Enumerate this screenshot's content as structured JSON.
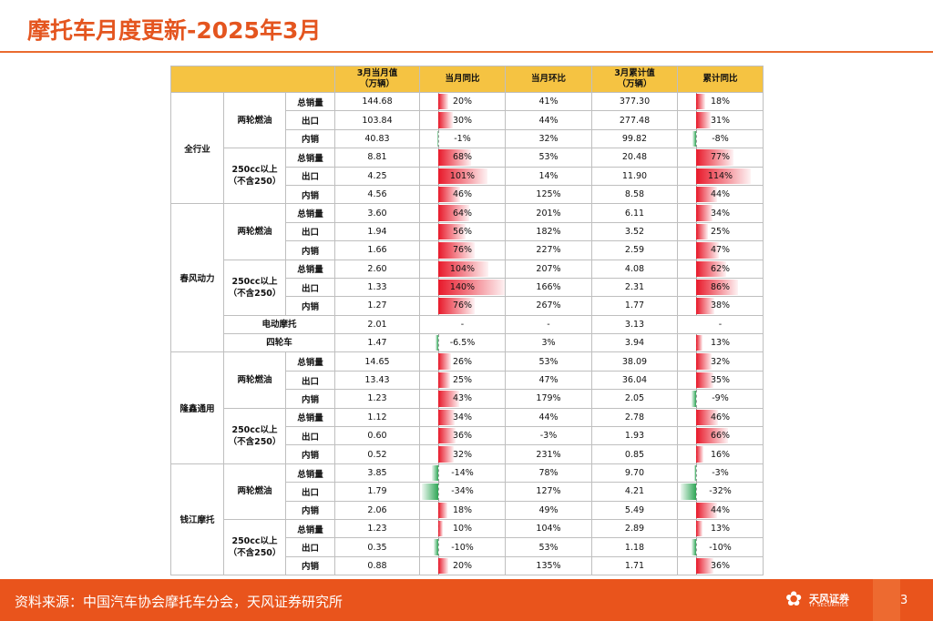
{
  "title": "摩托车月度更新-2025年3月",
  "headers": {
    "month_value": "3月当月值",
    "month_value_unit": "（万辆）",
    "yoy": "当月同比",
    "mom": "当月环比",
    "cum_value": "3月累计值",
    "cum_value_unit": "（万辆）",
    "cum_yoy": "累计同比"
  },
  "rows": [
    {
      "group": "全行业",
      "sub": "两轮燃油",
      "metric": "总销量",
      "value": "144.68",
      "yoy": "20%",
      "mom": "41%",
      "cum": "377.30",
      "cum_yoy": "18%"
    },
    {
      "group": "全行业",
      "sub": "两轮燃油",
      "metric": "出口",
      "value": "103.84",
      "yoy": "30%",
      "mom": "44%",
      "cum": "277.48",
      "cum_yoy": "31%"
    },
    {
      "group": "全行业",
      "sub": "两轮燃油",
      "metric": "内销",
      "value": "40.83",
      "yoy": "-1%",
      "mom": "32%",
      "cum": "99.82",
      "cum_yoy": "-8%"
    },
    {
      "group": "全行业",
      "sub": "250cc以上（不含250）",
      "metric": "总销量",
      "value": "8.81",
      "yoy": "68%",
      "mom": "53%",
      "cum": "20.48",
      "cum_yoy": "77%"
    },
    {
      "group": "全行业",
      "sub": "250cc以上（不含250）",
      "metric": "出口",
      "value": "4.25",
      "yoy": "101%",
      "mom": "14%",
      "cum": "11.90",
      "cum_yoy": "114%"
    },
    {
      "group": "全行业",
      "sub": "250cc以上（不含250）",
      "metric": "内销",
      "value": "4.56",
      "yoy": "46%",
      "mom": "125%",
      "cum": "8.58",
      "cum_yoy": "44%"
    },
    {
      "group": "春风动力",
      "sub": "两轮燃油",
      "metric": "总销量",
      "value": "3.60",
      "yoy": "64%",
      "mom": "201%",
      "cum": "6.11",
      "cum_yoy": "34%"
    },
    {
      "group": "春风动力",
      "sub": "两轮燃油",
      "metric": "出口",
      "value": "1.94",
      "yoy": "56%",
      "mom": "182%",
      "cum": "3.52",
      "cum_yoy": "25%"
    },
    {
      "group": "春风动力",
      "sub": "两轮燃油",
      "metric": "内销",
      "value": "1.66",
      "yoy": "76%",
      "mom": "227%",
      "cum": "2.59",
      "cum_yoy": "47%"
    },
    {
      "group": "春风动力",
      "sub": "250cc以上（不含250）",
      "metric": "总销量",
      "value": "2.60",
      "yoy": "104%",
      "mom": "207%",
      "cum": "4.08",
      "cum_yoy": "62%"
    },
    {
      "group": "春风动力",
      "sub": "250cc以上（不含250）",
      "metric": "出口",
      "value": "1.33",
      "yoy": "140%",
      "mom": "166%",
      "cum": "2.31",
      "cum_yoy": "86%"
    },
    {
      "group": "春风动力",
      "sub": "250cc以上（不含250）",
      "metric": "内销",
      "value": "1.27",
      "yoy": "76%",
      "mom": "267%",
      "cum": "1.77",
      "cum_yoy": "38%"
    },
    {
      "group": "春风动力",
      "sub": "电动摩托",
      "metric": "",
      "value": "2.01",
      "yoy": "-",
      "mom": "-",
      "cum": "3.13",
      "cum_yoy": "-"
    },
    {
      "group": "春风动力",
      "sub": "四轮车",
      "metric": "",
      "value": "1.47",
      "yoy": "-6.5%",
      "mom": "3%",
      "cum": "3.94",
      "cum_yoy": "13%"
    },
    {
      "group": "隆鑫通用",
      "sub": "两轮燃油",
      "metric": "总销量",
      "value": "14.65",
      "yoy": "26%",
      "mom": "53%",
      "cum": "38.09",
      "cum_yoy": "32%"
    },
    {
      "group": "隆鑫通用",
      "sub": "两轮燃油",
      "metric": "出口",
      "value": "13.43",
      "yoy": "25%",
      "mom": "47%",
      "cum": "36.04",
      "cum_yoy": "35%"
    },
    {
      "group": "隆鑫通用",
      "sub": "两轮燃油",
      "metric": "内销",
      "value": "1.23",
      "yoy": "43%",
      "mom": "179%",
      "cum": "2.05",
      "cum_yoy": "-9%"
    },
    {
      "group": "隆鑫通用",
      "sub": "250cc以上（不含250）",
      "metric": "总销量",
      "value": "1.12",
      "yoy": "34%",
      "mom": "44%",
      "cum": "2.78",
      "cum_yoy": "46%"
    },
    {
      "group": "隆鑫通用",
      "sub": "250cc以上（不含250）",
      "metric": "出口",
      "value": "0.60",
      "yoy": "36%",
      "mom": "-3%",
      "cum": "1.93",
      "cum_yoy": "66%"
    },
    {
      "group": "隆鑫通用",
      "sub": "250cc以上（不含250）",
      "metric": "内销",
      "value": "0.52",
      "yoy": "32%",
      "mom": "231%",
      "cum": "0.85",
      "cum_yoy": "16%"
    },
    {
      "group": "钱江摩托",
      "sub": "两轮燃油",
      "metric": "总销量",
      "value": "3.85",
      "yoy": "-14%",
      "mom": "78%",
      "cum": "9.70",
      "cum_yoy": "-3%"
    },
    {
      "group": "钱江摩托",
      "sub": "两轮燃油",
      "metric": "出口",
      "value": "1.79",
      "yoy": "-34%",
      "mom": "127%",
      "cum": "4.21",
      "cum_yoy": "-32%"
    },
    {
      "group": "钱江摩托",
      "sub": "两轮燃油",
      "metric": "内销",
      "value": "2.06",
      "yoy": "18%",
      "mom": "49%",
      "cum": "5.49",
      "cum_yoy": "44%"
    },
    {
      "group": "钱江摩托",
      "sub": "250cc以上（不含250）",
      "metric": "总销量",
      "value": "1.23",
      "yoy": "10%",
      "mom": "104%",
      "cum": "2.89",
      "cum_yoy": "13%"
    },
    {
      "group": "钱江摩托",
      "sub": "250cc以上（不含250）",
      "metric": "出口",
      "value": "0.35",
      "yoy": "-10%",
      "mom": "53%",
      "cum": "1.18",
      "cum_yoy": "-10%"
    },
    {
      "group": "钱江摩托",
      "sub": "250cc以上（不含250）",
      "metric": "内销",
      "value": "0.88",
      "yoy": "20%",
      "mom": "135%",
      "cum": "1.71",
      "cum_yoy": "36%"
    }
  ],
  "footer": {
    "source": "资料来源：中国汽车协会摩托车分会，天风证券研究所",
    "logo_name": "天风证券",
    "logo_sub": "TF SECURITIES",
    "page": "3"
  },
  "colors": {
    "accent": "#e9541c",
    "header_fill": "#f5c342",
    "pos_bar": "#e8192a",
    "neg_bar": "#2fa656"
  }
}
